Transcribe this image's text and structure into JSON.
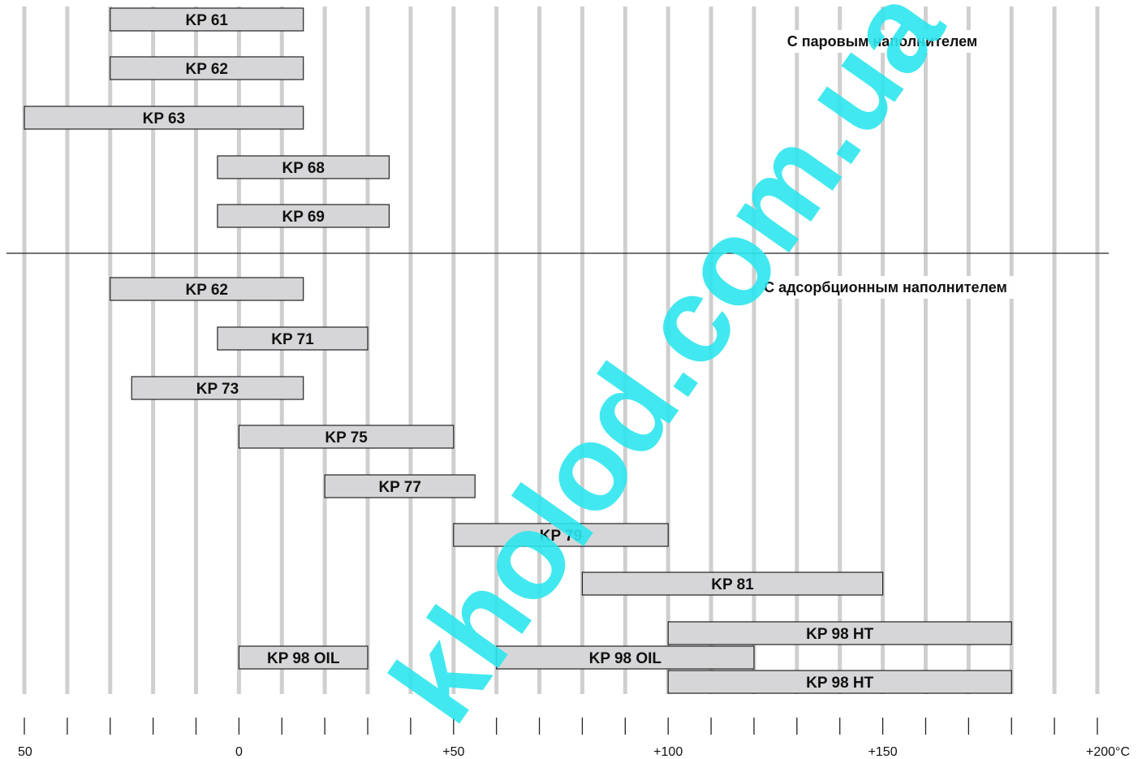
{
  "chart_data": {
    "type": "bar",
    "orientation": "horizontal-range",
    "xlim": [
      -50,
      200
    ],
    "x_unit": "°C",
    "gridlines_every": 10,
    "colors": {
      "bar_fill": "#d6d6d8",
      "bar_stroke": "#222222",
      "grid": "#cfcfcf",
      "watermark": "#2ee6ee"
    },
    "tick_labels": [
      {
        "value": -50,
        "label": "50"
      },
      {
        "value": 0,
        "label": "0"
      },
      {
        "value": 50,
        "label": "+50"
      },
      {
        "value": 100,
        "label": "+100"
      },
      {
        "value": 150,
        "label": "+150"
      },
      {
        "value": 200,
        "label": "+200°C"
      }
    ],
    "sections": [
      {
        "title": "С паровым наполнителем",
        "bars": [
          {
            "label": "KP 61",
            "min": -30,
            "max": 15
          },
          {
            "label": "KP 62",
            "min": -30,
            "max": 15
          },
          {
            "label": "KP 63",
            "min": -50,
            "max": 15
          },
          {
            "label": "KP 68",
            "min": -5,
            "max": 35
          },
          {
            "label": "KP 69",
            "min": -5,
            "max": 35
          }
        ]
      },
      {
        "title": "С адсорбционным наполнителем",
        "bars": [
          {
            "label": "KP 62",
            "min": -30,
            "max": 15
          },
          {
            "label": "KP 71",
            "min": -5,
            "max": 30
          },
          {
            "label": "KP 73",
            "min": -25,
            "max": 15
          },
          {
            "label": "KP 75",
            "min": 0,
            "max": 50
          },
          {
            "label": "KP 77",
            "min": 20,
            "max": 55
          },
          {
            "label": "KP 79",
            "min": 50,
            "max": 100
          },
          {
            "label": "KP 81",
            "min": 80,
            "max": 150
          },
          {
            "label": "KP 98 HT",
            "min": 100,
            "max": 180
          },
          {
            "label": "KP 98 OIL",
            "min": 0,
            "max": 30
          },
          {
            "label": "KP 98 OIL",
            "min": 60,
            "max": 120
          },
          {
            "label": "KP 98 HT",
            "min": 100,
            "max": 180
          }
        ]
      }
    ]
  },
  "watermark_text": "kholod.com.ua"
}
